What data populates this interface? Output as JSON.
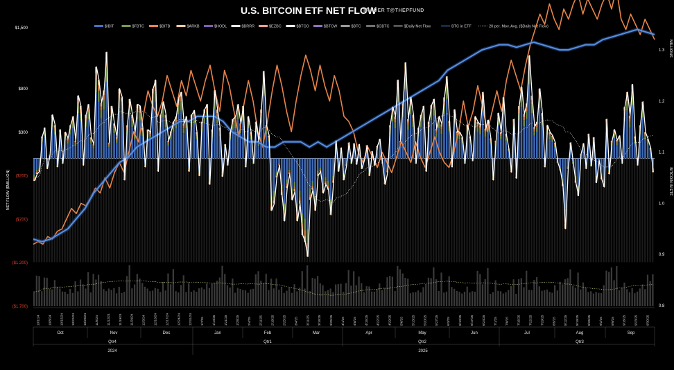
{
  "chart_data": {
    "type": "bar",
    "title": "U.S. BITCOIN ETF NET FLOW",
    "subtitle": "TRADER T@THEPFUND",
    "ylabel": "NET FLOW ($MILLION)",
    "y2label": "BITCOIN IN ETF",
    "y2unit": "MILLIONS",
    "ylim": [
      -1700,
      1500
    ],
    "y2lim": [
      0.8,
      1.3
    ],
    "yticks": [
      {
        "value": 1500,
        "label": "$1,500"
      },
      {
        "value": 800,
        "label": "$800"
      },
      {
        "value": 300,
        "label": "$300"
      },
      {
        "value": -200,
        "label": "($200)"
      },
      {
        "value": -700,
        "label": "($700)"
      },
      {
        "value": -1200,
        "label": "($1,200)"
      },
      {
        "value": -1700,
        "label": "($1,700)"
      }
    ],
    "y2ticks": [
      "1.3",
      "1.2",
      "1.1",
      "1.0",
      "0.9",
      "0.8"
    ],
    "legend": [
      {
        "name": "$IBIT",
        "color": "#4472c4",
        "kind": "bar"
      },
      {
        "name": "$FBTC",
        "color": "#7a9a4a",
        "kind": "bar"
      },
      {
        "name": "$BITB",
        "color": "#e8844a",
        "kind": "bar"
      },
      {
        "name": "$ARKB",
        "color": "#f3c89a",
        "kind": "bar"
      },
      {
        "name": "$HODL",
        "color": "#7e5fb0",
        "kind": "bar"
      },
      {
        "name": "$BRRR",
        "color": "#e8e8e8",
        "kind": "bar"
      },
      {
        "name": "$EZBC",
        "color": "#e8a090",
        "kind": "bar"
      },
      {
        "name": "$BTCO",
        "color": "#f0f0f0",
        "kind": "bar"
      },
      {
        "name": "$BTCW",
        "color": "#8f6fc0",
        "kind": "bar"
      },
      {
        "name": "$BTC",
        "color": "#9a9a9a",
        "kind": "bar"
      },
      {
        "name": "$GBTC",
        "color": "#707070",
        "kind": "bar"
      },
      {
        "name": "$Daily Net Flow",
        "color": "#ffffff",
        "kind": "line"
      },
      {
        "name": "BTC in ETF",
        "color": "#4a7fd4",
        "kind": "line"
      },
      {
        "name": "20 per. Mov. Avg. ($Daily Net Flow)",
        "color": "#dddddd",
        "kind": "dotted"
      }
    ],
    "x_date_labels": [
      "10/1/24",
      "10/8/24",
      "10/15/24",
      "10/22/24",
      "10/29/24",
      "11/5/24",
      "11/12/24",
      "11/19/24",
      "11/26/24",
      "12/3/24",
      "12/10/24",
      "12/17/24",
      "12/24/24",
      "12/31/24",
      "1/7/25",
      "1/14/25",
      "1/21/25",
      "1/28/25",
      "2/4/25",
      "2/11/25",
      "2/18/25",
      "2/25/25",
      "3/4/25",
      "3/11/25",
      "3/18/25",
      "3/25/25",
      "4/1/25",
      "4/8/25",
      "4/15/25",
      "4/22/25",
      "4/29/25",
      "5/6/25",
      "5/13/25",
      "5/20/25",
      "5/27/25",
      "6/3/25",
      "6/10/25",
      "6/17/25",
      "6/24/25",
      "7/1/25",
      "7/8/25",
      "7/15/25",
      "7/22/25",
      "7/29/25",
      "8/5/25",
      "8/12/25",
      "8/19/25",
      "8/26/25",
      "9/2/25",
      "9/9/25",
      "9/16/25",
      "9/23/25",
      "9/30/25"
    ],
    "months": [
      "Oct",
      "Nov",
      "Dec",
      "Jan",
      "Feb",
      "Mar",
      "Apr",
      "May",
      "Jun",
      "Jul",
      "Aug",
      "Sep"
    ],
    "quarters": [
      "Qtr4",
      "Qtr1",
      "Qtr2",
      "Qtr3"
    ],
    "years": [
      "2024",
      "2025"
    ],
    "daily_net_flow": [
      -260,
      -180,
      -150,
      250,
      350,
      -120,
      40,
      500,
      380,
      -100,
      330,
      -60,
      300,
      230,
      380,
      480,
      200,
      720,
      600,
      -80,
      500,
      620,
      240,
      160,
      1050,
      900,
      640,
      780,
      1220,
      180,
      600,
      400,
      240,
      800,
      700,
      -250,
      380,
      680,
      500,
      300,
      620,
      600,
      350,
      -100,
      330,
      300,
      800,
      900,
      -150,
      500,
      650,
      500,
      200,
      310,
      420,
      480,
      700,
      760,
      400,
      480,
      -150,
      500,
      550,
      300,
      -200,
      420,
      560,
      620,
      -300,
      330,
      780,
      560,
      350,
      -210,
      160,
      -80,
      300,
      450,
      480,
      620,
      400,
      600,
      -100,
      480,
      300,
      -60,
      420,
      190,
      560,
      1000,
      380,
      260,
      -600,
      -520,
      -220,
      -80,
      -420,
      -720,
      -340,
      -180,
      -480,
      -380,
      -720,
      -520,
      -880,
      -960,
      -1130,
      -480,
      -360,
      -600,
      -200,
      -150,
      -400,
      -300,
      -360,
      -650,
      -280,
      200,
      -150,
      120,
      -250,
      -90,
      180,
      -60,
      170,
      -70,
      160,
      -120,
      -20,
      150,
      -200,
      80,
      -80,
      140,
      220,
      -60,
      -300,
      -160,
      380,
      590,
      480,
      900,
      200,
      650,
      1100,
      450,
      700,
      500,
      -60,
      350,
      500,
      600,
      -150,
      420,
      610,
      680,
      340,
      480,
      390,
      700,
      940,
      430,
      -100,
      560,
      310,
      300,
      240,
      -60,
      380,
      250,
      -30,
      480,
      420,
      380,
      760,
      340,
      440,
      230,
      -250,
      200,
      520,
      300,
      700,
      280,
      110,
      -160,
      450,
      -230,
      600,
      820,
      510,
      630,
      1180,
      720,
      360,
      420,
      800,
      520,
      -100,
      380,
      300,
      260,
      180,
      -50,
      -140,
      -320,
      -810,
      -120,
      180,
      -60,
      -280,
      -430,
      50,
      170,
      -120,
      280,
      -90,
      240,
      -280,
      -20,
      -240,
      -330,
      450,
      -180,
      200,
      330,
      210,
      260,
      -60,
      590,
      760,
      490,
      850,
      250,
      -80,
      380,
      650,
      300,
      220,
      120,
      -160
    ],
    "bitb_line_norm": [
      0.92,
      0.925,
      0.92,
      0.935,
      0.93,
      0.945,
      0.95,
      0.97,
      0.99,
      0.98,
      1.0,
      0.995,
      1.01,
      1.03,
      1.02,
      1.05,
      1.03,
      1.06,
      1.08,
      1.06,
      1.1,
      1.14,
      1.12,
      1.17,
      1.22,
      1.19,
      1.17,
      1.2,
      1.25,
      1.22,
      1.19,
      1.24,
      1.21,
      1.26,
      1.23,
      1.2,
      1.24,
      1.27,
      1.22,
      1.18,
      1.26,
      1.23,
      1.18,
      1.13,
      1.19,
      1.24,
      1.2,
      1.14,
      1.11,
      1.16,
      1.22,
      1.27,
      1.23,
      1.18,
      1.14,
      1.2,
      1.25,
      1.29,
      1.26,
      1.22,
      1.27,
      1.23,
      1.2,
      1.25,
      1.22,
      1.17,
      1.16,
      1.14,
      1.1,
      1.08,
      1.11,
      1.09,
      1.07,
      1.1,
      1.08,
      1.06,
      1.09,
      1.12,
      1.1,
      1.08,
      1.12,
      1.09,
      1.07,
      1.1,
      1.13,
      1.1,
      1.08,
      1.07,
      1.1,
      1.14,
      1.2,
      1.15,
      1.18,
      1.23,
      1.19,
      1.14,
      1.18,
      1.22,
      1.18,
      1.24,
      1.28,
      1.25,
      1.22,
      1.27,
      1.31,
      1.34,
      1.37,
      1.35,
      1.39,
      1.36,
      1.34,
      1.38,
      1.36,
      1.39,
      1.41,
      1.37,
      1.4,
      1.38,
      1.36,
      1.39,
      1.41,
      1.38,
      1.42,
      1.36,
      1.34,
      1.37,
      1.35,
      1.33,
      1.36,
      1.34,
      1.32
    ],
    "btc_in_etf_norm": [
      0.93,
      0.925,
      0.93,
      0.94,
      0.95,
      0.97,
      0.99,
      1.02,
      1.04,
      1.06,
      1.08,
      1.09,
      1.11,
      1.12,
      1.13,
      1.14,
      1.15,
      1.16,
      1.16,
      1.17,
      1.17,
      1.17,
      1.16,
      1.14,
      1.13,
      1.12,
      1.12,
      1.11,
      1.11,
      1.12,
      1.12,
      1.12,
      1.11,
      1.12,
      1.11,
      1.12,
      1.13,
      1.14,
      1.15,
      1.16,
      1.17,
      1.18,
      1.19,
      1.2,
      1.21,
      1.22,
      1.23,
      1.24,
      1.26,
      1.27,
      1.28,
      1.29,
      1.3,
      1.305,
      1.31,
      1.31,
      1.305,
      1.31,
      1.315,
      1.31,
      1.305,
      1.3,
      1.3,
      1.305,
      1.31,
      1.31,
      1.32,
      1.325,
      1.33,
      1.335,
      1.34,
      1.335,
      1.33
    ],
    "ma20_norm": [
      -200,
      -150,
      -80,
      -20,
      40,
      100,
      160,
      200,
      230,
      260,
      280,
      300,
      320,
      330,
      340,
      330,
      320,
      300,
      280,
      260,
      230,
      200,
      180,
      160,
      120,
      80,
      40,
      0,
      -40,
      -80,
      -120,
      -150,
      -180,
      -200,
      -220,
      -240,
      -200,
      -150,
      -100,
      -40,
      20,
      60,
      100,
      130,
      160,
      190,
      210,
      230,
      250,
      260,
      260,
      250,
      240,
      220,
      200,
      180,
      160,
      150,
      140,
      130,
      110,
      100,
      80,
      60,
      40,
      20,
      0,
      -10,
      -20,
      -30,
      -20,
      -10,
      0,
      10,
      40,
      70,
      80
    ]
  }
}
